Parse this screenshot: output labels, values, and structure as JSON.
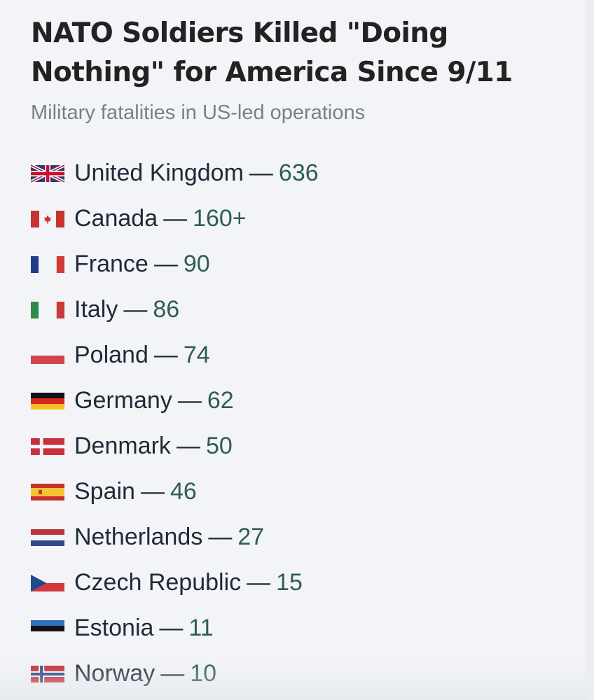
{
  "header": {
    "title": "NATO Soldiers Killed \"Doing Nothing\" for America Since 9/11",
    "subtitle": "Military fatalities in US-led operations"
  },
  "separator": "—",
  "entries": [
    {
      "country": "United Kingdom",
      "value": "636",
      "flag_icon": "uk-flag-icon"
    },
    {
      "country": "Canada",
      "value": "160+",
      "flag_icon": "canada-flag-icon"
    },
    {
      "country": "France",
      "value": "90",
      "flag_icon": "france-flag-icon"
    },
    {
      "country": "Italy",
      "value": "86",
      "flag_icon": "italy-flag-icon"
    },
    {
      "country": "Poland",
      "value": "74",
      "flag_icon": "poland-flag-icon"
    },
    {
      "country": "Germany",
      "value": "62",
      "flag_icon": "germany-flag-icon"
    },
    {
      "country": "Denmark",
      "value": "50",
      "flag_icon": "denmark-flag-icon"
    },
    {
      "country": "Spain",
      "value": "46",
      "flag_icon": "spain-flag-icon"
    },
    {
      "country": "Netherlands",
      "value": "27",
      "flag_icon": "netherlands-flag-icon"
    },
    {
      "country": "Czech Republic",
      "value": "15",
      "flag_icon": "czech-republic-flag-icon"
    },
    {
      "country": "Estonia",
      "value": "11",
      "flag_icon": "estonia-flag-icon"
    },
    {
      "country": "Norway",
      "value": "10",
      "flag_icon": "norway-flag-icon"
    }
  ],
  "colors": {
    "background": "#f2f4f8",
    "title": "#222222",
    "subtitle": "#7a7f87",
    "country_text": "#1f2937",
    "value_text": "#2f5d4f"
  }
}
